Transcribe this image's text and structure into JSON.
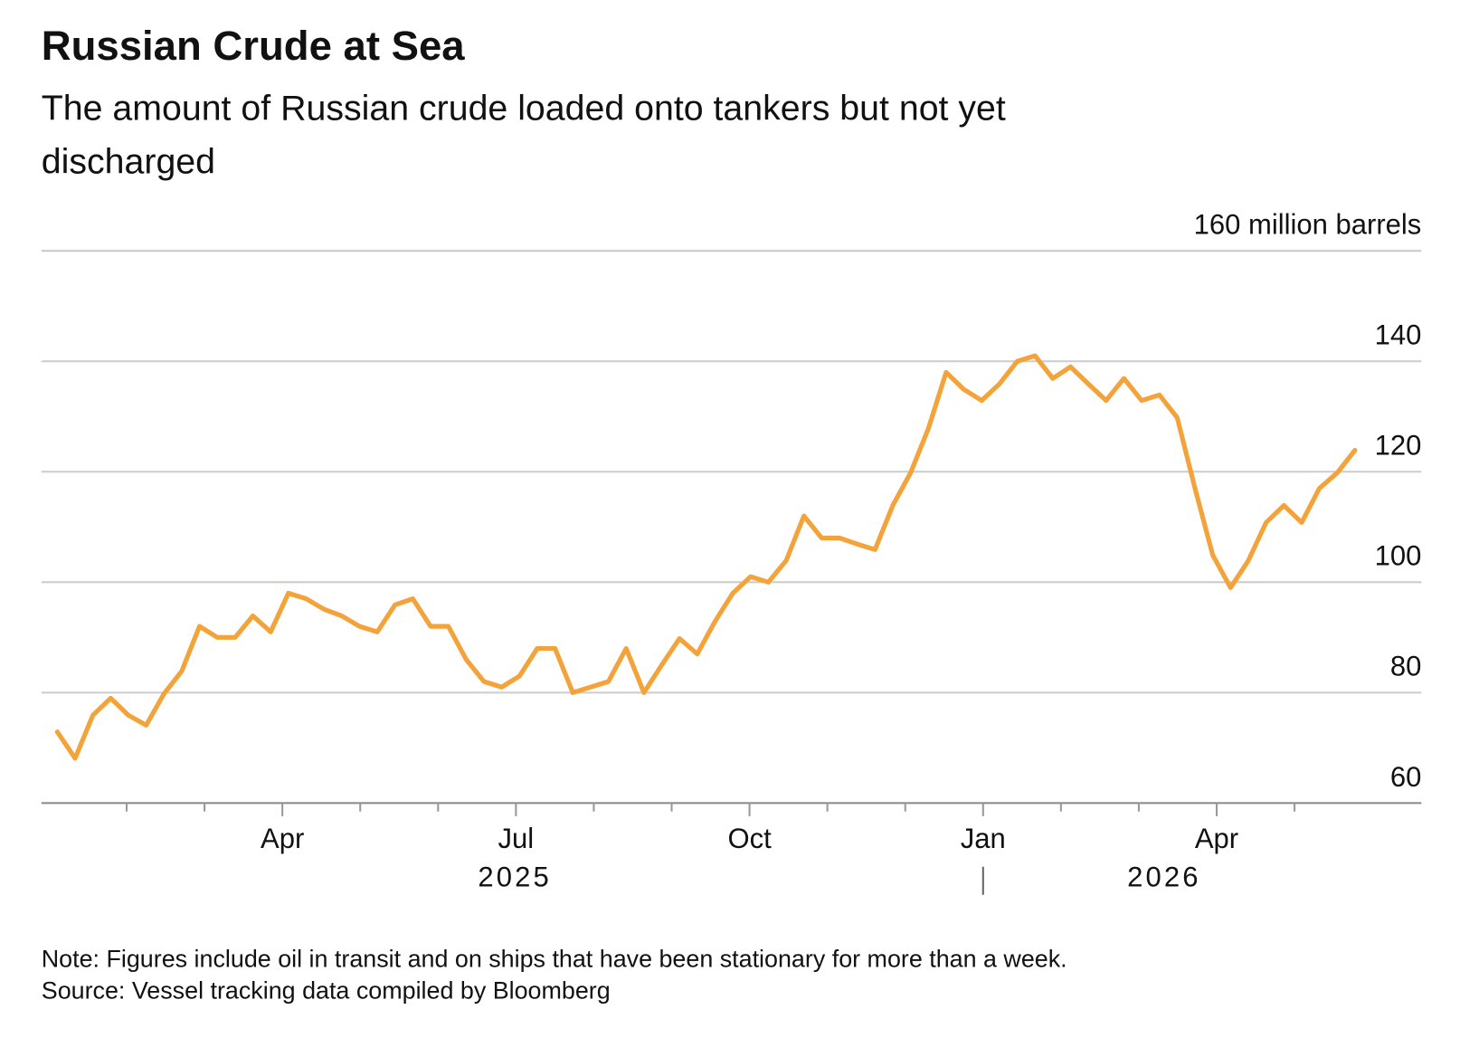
{
  "chart_data": {
    "type": "line",
    "title": "Russian Crude at Sea",
    "subtitle_lines": [
      "The amount of Russian crude loaded onto tankers but not yet",
      "discharged"
    ],
    "categories": [
      null,
      null,
      null,
      null,
      null,
      null,
      null,
      null,
      null,
      null,
      null,
      null,
      null,
      null,
      null,
      null,
      null,
      null,
      null,
      null,
      null,
      null,
      null,
      null,
      null,
      null,
      null,
      null,
      null,
      null,
      null,
      null,
      null,
      null,
      null,
      null,
      null,
      null,
      null,
      null,
      null,
      null,
      null,
      null,
      null,
      null,
      null,
      null,
      null,
      null,
      null,
      null,
      null,
      null,
      null,
      null,
      null,
      null,
      null,
      null,
      null,
      null,
      null,
      null,
      null,
      null,
      null,
      null,
      null,
      null,
      null,
      null,
      null,
      null
    ],
    "series": [
      {
        "name": "Russian crude at sea",
        "color": "#f4a23a",
        "values": [
          72.9,
          68.1,
          75.9,
          79,
          75.9,
          74.1,
          79.8,
          83.9,
          92,
          90,
          90,
          93.9,
          91,
          98,
          97,
          95.1,
          93.9,
          92,
          91,
          95.9,
          97,
          92,
          92,
          86,
          82,
          81,
          83,
          88,
          88,
          80,
          81,
          82,
          88,
          80,
          85,
          89.8,
          87,
          92.9,
          98,
          101,
          100,
          103.9,
          112,
          108,
          108,
          106.9,
          105.9,
          113.9,
          119.8,
          127.8,
          138,
          134.9,
          132.9,
          135.9,
          140,
          141,
          136.9,
          139,
          135.9,
          132.9,
          136.9,
          132.9,
          133.9,
          129.8,
          117,
          104.9,
          99,
          103.9,
          110.8,
          113.9,
          110.8,
          117,
          119.8,
          123.9
        ]
      }
    ],
    "month_labels": [
      "Apr",
      "Jul",
      "Oct",
      "Jan",
      "Apr"
    ],
    "year_labels": [
      "2025",
      "2026"
    ],
    "ylim": [
      60,
      160
    ],
    "yticks": [
      60,
      80,
      100,
      120,
      140,
      {
        "value": 160,
        "label": "160 million barrels"
      }
    ],
    "grid": true,
    "note": "Note: Figures include oil in transit and on ships that have been stationary for more than a week.",
    "source": "Source: Vessel tracking data compiled by Bloomberg"
  }
}
